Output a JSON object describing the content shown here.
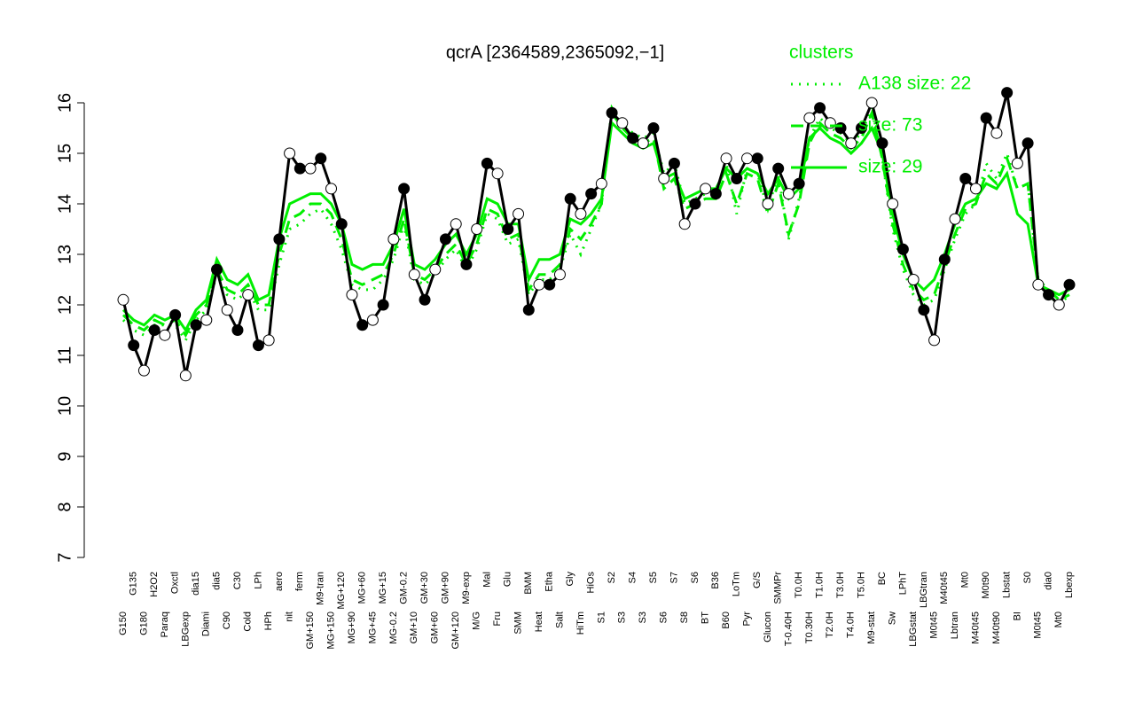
{
  "chart_data": {
    "type": "line",
    "title": "qcrA [2364589,2365092,−1]",
    "categories": [
      "G150",
      "G135",
      "G180",
      "H2O2",
      "Paraq",
      "Oxctl",
      "LBGexp",
      "dia15",
      "Diami",
      "dia5",
      "C90",
      "C30",
      "Cold",
      "LPh",
      "HPh",
      "aero",
      "nit",
      "ferm",
      "GM+150",
      "M9-tran",
      "MG+150",
      "MG+120",
      "MG+90",
      "MG+60",
      "MG+45",
      "MG+15",
      "MG-0.2",
      "GM-0.2",
      "GM+10",
      "GM+30",
      "GM+60",
      "GM+90",
      "GM+120",
      "M9-exp",
      "M/G",
      "Mal",
      "Fru",
      "Glu",
      "SMM",
      "BMM",
      "Heat",
      "Etha",
      "Salt",
      "Gly",
      "HiTm",
      "HiOs",
      "S1",
      "S2",
      "S3",
      "S4",
      "S3",
      "S5",
      "S6",
      "S7",
      "S8",
      "S6",
      "BT",
      "B36",
      "B60",
      "LoTm",
      "Pyr",
      "G/S",
      "Glucon",
      "SMMPr",
      "T-0.40H",
      "T0.0H",
      "T0.30H",
      "T1.0H",
      "T2.0H",
      "T3.0H",
      "T4.0H",
      "T5.0H",
      "M9-stat",
      "BC",
      "Sw",
      "LPhT",
      "LBGstat",
      "LBGtran",
      "M0t45",
      "M40t45",
      "Lbtran",
      "Mt0",
      "M40t45",
      "M0t90",
      "M40t90",
      "Lbstat",
      "BI",
      "S0",
      "M0t45",
      "dia0",
      "Mt0",
      "Lbexp"
    ],
    "values": [
      12.1,
      11.2,
      10.7,
      11.5,
      11.4,
      11.8,
      10.6,
      11.6,
      11.7,
      12.7,
      11.9,
      11.5,
      12.2,
      11.2,
      11.3,
      13.3,
      15.0,
      14.7,
      14.7,
      14.9,
      14.3,
      13.6,
      12.2,
      11.6,
      11.7,
      12.0,
      13.3,
      14.3,
      12.6,
      12.1,
      12.7,
      13.3,
      13.6,
      12.8,
      13.5,
      14.8,
      14.6,
      13.5,
      13.8,
      11.9,
      12.4,
      12.4,
      12.6,
      14.1,
      13.8,
      14.2,
      14.4,
      15.8,
      15.6,
      15.3,
      15.2,
      15.5,
      14.5,
      14.8,
      13.6,
      14.0,
      14.3,
      14.2,
      14.9,
      14.5,
      14.9,
      14.9,
      14.0,
      14.7,
      14.2,
      14.4,
      15.7,
      15.9,
      15.6,
      15.5,
      15.2,
      15.5,
      16.0,
      15.2,
      14.0,
      13.1,
      12.5,
      11.9,
      11.3,
      12.9,
      13.7,
      14.5,
      14.3,
      15.7,
      15.4,
      16.2,
      14.8,
      15.2,
      12.4,
      12.2,
      12.0,
      12.4
    ],
    "color": "#000000",
    "legend_title": "clusters",
    "series": [
      {
        "name": "A138 size: 22",
        "color": "#00ee00",
        "style": "dotted",
        "values": [
          11.7,
          11.5,
          11.4,
          11.6,
          11.6,
          11.6,
          11.3,
          11.7,
          11.9,
          12.6,
          12.2,
          12.1,
          12.3,
          11.9,
          11.9,
          12.8,
          13.5,
          13.6,
          13.8,
          13.9,
          13.6,
          13.1,
          12.4,
          12.3,
          12.3,
          12.5,
          12.9,
          13.6,
          12.5,
          12.4,
          12.6,
          12.9,
          13.1,
          12.7,
          13.1,
          13.8,
          13.7,
          13.2,
          13.3,
          12.2,
          12.5,
          12.5,
          12.7,
          13.4,
          13.0,
          13.5,
          14.0,
          15.9,
          15.6,
          15.4,
          15.3,
          15.4,
          14.6,
          14.8,
          14.0,
          14.1,
          14.2,
          14.2,
          14.8,
          13.8,
          14.7,
          14.6,
          13.9,
          14.6,
          13.3,
          14.1,
          15.3,
          15.7,
          15.5,
          15.4,
          15.2,
          15.4,
          15.9,
          14.9,
          13.5,
          12.7,
          12.2,
          12.0,
          12.1,
          12.7,
          13.3,
          13.8,
          14.0,
          14.8,
          14.5,
          15.0,
          14.3,
          14.4,
          12.5,
          12.2,
          12.0,
          12.2
        ]
      },
      {
        "name": "size: 73",
        "color": "#00ee00",
        "style": "dashed",
        "values": [
          11.8,
          11.6,
          11.5,
          11.7,
          11.6,
          11.7,
          11.4,
          11.8,
          12.0,
          12.7,
          12.3,
          12.2,
          12.4,
          12.0,
          12.0,
          13.0,
          13.7,
          13.8,
          14.0,
          14.0,
          13.8,
          13.3,
          12.5,
          12.4,
          12.5,
          12.6,
          13.0,
          13.7,
          12.6,
          12.5,
          12.7,
          13.0,
          13.2,
          12.8,
          13.2,
          13.9,
          13.8,
          13.3,
          13.4,
          12.3,
          12.6,
          12.6,
          12.8,
          13.5,
          13.3,
          13.6,
          14.0,
          15.8,
          15.5,
          15.3,
          15.2,
          15.3,
          14.3,
          14.5,
          13.9,
          14.0,
          14.1,
          14.1,
          14.6,
          14.0,
          14.6,
          14.5,
          13.8,
          14.4,
          13.4,
          14.0,
          15.2,
          15.6,
          15.4,
          15.3,
          15.1,
          15.3,
          15.8,
          14.9,
          13.6,
          12.8,
          12.3,
          12.1,
          12.2,
          12.8,
          13.4,
          13.9,
          14.0,
          14.6,
          14.4,
          14.9,
          14.3,
          14.4,
          12.5,
          12.3,
          12.1,
          12.2
        ]
      },
      {
        "name": "size: 29",
        "color": "#00ee00",
        "style": "solid",
        "values": [
          11.9,
          11.7,
          11.6,
          11.8,
          11.7,
          11.8,
          11.5,
          11.9,
          12.1,
          12.9,
          12.5,
          12.4,
          12.6,
          12.1,
          12.2,
          13.3,
          14.0,
          14.1,
          14.2,
          14.2,
          14.0,
          13.6,
          12.8,
          12.7,
          12.8,
          12.8,
          13.2,
          13.9,
          12.8,
          12.7,
          12.9,
          13.2,
          13.4,
          13.0,
          13.4,
          14.1,
          14.0,
          13.6,
          13.6,
          12.5,
          12.9,
          12.9,
          13.0,
          13.7,
          13.6,
          13.8,
          14.1,
          15.6,
          15.4,
          15.2,
          15.1,
          15.2,
          14.5,
          14.6,
          14.1,
          14.2,
          14.3,
          14.3,
          14.7,
          14.5,
          14.7,
          14.6,
          14.2,
          14.5,
          14.1,
          14.3,
          15.3,
          15.5,
          15.3,
          15.2,
          15.0,
          15.2,
          15.5,
          15.0,
          13.8,
          13.0,
          12.5,
          12.3,
          12.5,
          13.0,
          13.6,
          14.0,
          14.1,
          14.4,
          14.3,
          14.6,
          13.8,
          13.6,
          12.4,
          12.3,
          12.2,
          12.3
        ]
      }
    ],
    "ylim": [
      7,
      16
    ],
    "yticks": [
      7,
      8,
      9,
      10,
      11,
      12,
      13,
      14,
      15,
      16
    ],
    "grid": false
  }
}
